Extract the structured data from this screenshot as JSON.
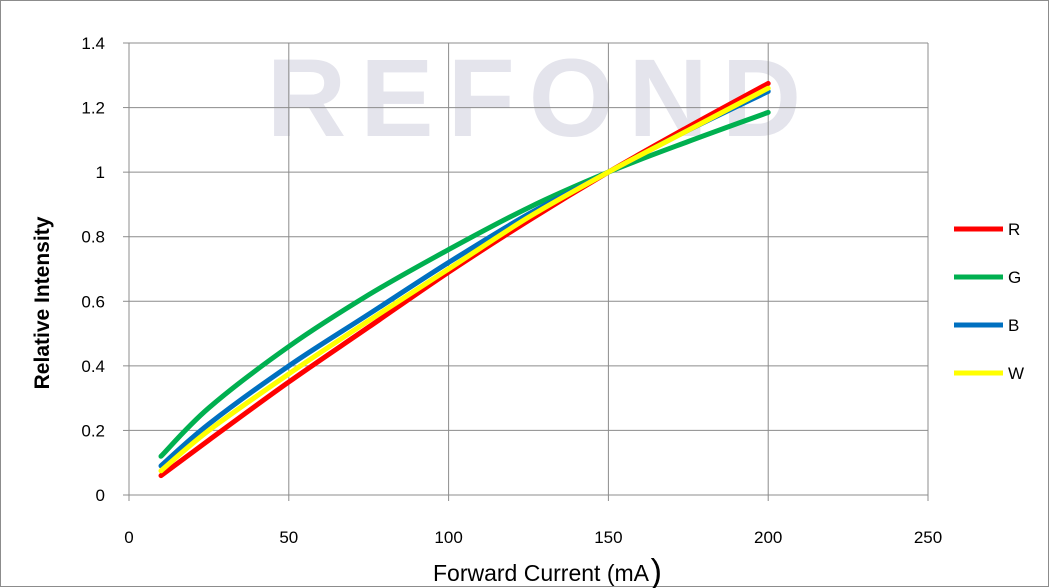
{
  "chart_data": {
    "type": "line",
    "title": "",
    "xlabel": "Forward Current (mA)",
    "ylabel": "Relative Intensity",
    "xlim": [
      0,
      250
    ],
    "ylim": [
      0,
      1.4
    ],
    "x_ticks": [
      "0",
      "50",
      "100",
      "150",
      "200",
      "250"
    ],
    "y_ticks": [
      "0",
      "0.2",
      "0.4",
      "0.6",
      "0.8",
      "1",
      "1.2",
      "1.4"
    ],
    "grid": true,
    "legend_position": "right",
    "watermark": "REFOND",
    "series": [
      {
        "name": "R",
        "color": "#ff0000",
        "x": [
          10,
          25,
          50,
          75,
          100,
          125,
          150,
          175,
          200
        ],
        "y": [
          0.06,
          0.17,
          0.35,
          0.52,
          0.69,
          0.85,
          1.0,
          1.14,
          1.275
        ]
      },
      {
        "name": "G",
        "color": "#00b050",
        "x": [
          10,
          25,
          50,
          75,
          100,
          125,
          150,
          175,
          200
        ],
        "y": [
          0.12,
          0.27,
          0.46,
          0.62,
          0.76,
          0.89,
          1.0,
          1.095,
          1.185
        ]
      },
      {
        "name": "B",
        "color": "#0070c0",
        "x": [
          10,
          25,
          50,
          75,
          100,
          125,
          150,
          175,
          200
        ],
        "y": [
          0.09,
          0.22,
          0.4,
          0.56,
          0.72,
          0.87,
          1.0,
          1.13,
          1.25
        ]
      },
      {
        "name": "W",
        "color": "#ffff00",
        "x": [
          10,
          25,
          50,
          75,
          100,
          125,
          150,
          175,
          200
        ],
        "y": [
          0.075,
          0.2,
          0.375,
          0.54,
          0.7,
          0.86,
          1.0,
          1.13,
          1.26
        ]
      }
    ]
  }
}
